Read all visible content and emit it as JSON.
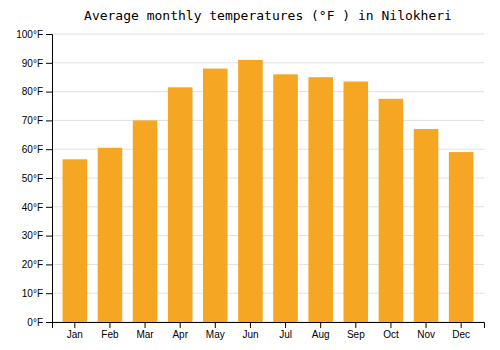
{
  "chart_data": {
    "type": "bar",
    "title": "Average monthly temperatures (°F ) in Nilokheri",
    "categories": [
      "Jan",
      "Feb",
      "Mar",
      "Apr",
      "May",
      "Jun",
      "Jul",
      "Aug",
      "Sep",
      "Oct",
      "Nov",
      "Dec"
    ],
    "values": [
      56.5,
      60.5,
      70.0,
      81.5,
      88.0,
      91.0,
      86.0,
      85.0,
      83.5,
      77.5,
      67.0,
      59.0
    ],
    "color": "#F5A623",
    "ylim": [
      0,
      100
    ],
    "yticks": [
      {
        "value": 0,
        "label": "0°F"
      },
      {
        "value": 10,
        "label": "10°F"
      },
      {
        "value": 20,
        "label": "20°F"
      },
      {
        "value": 30,
        "label": "30°F"
      },
      {
        "value": 40,
        "label": "40°F"
      },
      {
        "value": 50,
        "label": "50°F"
      },
      {
        "value": 60,
        "label": "60°F"
      },
      {
        "value": 70,
        "label": "70°F"
      },
      {
        "value": 80,
        "label": "80°F"
      },
      {
        "value": 90,
        "label": "90°F"
      },
      {
        "value": 100,
        "label": "100°F"
      }
    ],
    "grid": true
  }
}
